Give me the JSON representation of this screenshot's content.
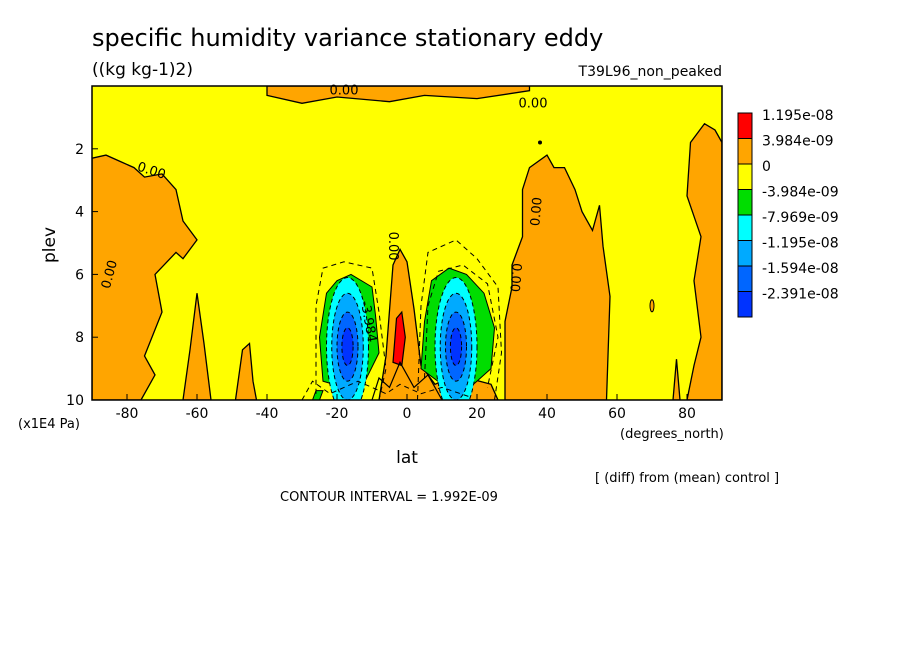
{
  "chart_data": {
    "type": "contour",
    "title": "specific humidity variance stationary eddy",
    "units": "((kg kg-1)2)",
    "run_label": "T39L96_non_peaked",
    "xlabel": "lat",
    "x_units": "(degrees_north)",
    "ylabel": "plev",
    "y_units": "(x1E4 Pa)",
    "xlim": [
      -90,
      90
    ],
    "ylim": [
      10,
      0
    ],
    "x_ticks": [
      {
        "value": -80,
        "label": "-80"
      },
      {
        "value": -60,
        "label": "-60"
      },
      {
        "value": -40,
        "label": "-40"
      },
      {
        "value": -20,
        "label": "-20"
      },
      {
        "value": 0,
        "label": "0"
      },
      {
        "value": 20,
        "label": "20"
      },
      {
        "value": 40,
        "label": "40"
      },
      {
        "value": 60,
        "label": "60"
      },
      {
        "value": 80,
        "label": "80"
      }
    ],
    "y_ticks": [
      {
        "value": 2,
        "label": "2"
      },
      {
        "value": 4,
        "label": "4"
      },
      {
        "value": 6,
        "label": "6"
      },
      {
        "value": 8,
        "label": "8"
      },
      {
        "value": 10,
        "label": "10"
      }
    ],
    "legend": [
      {
        "label": "1.195e-08",
        "color": "#ff0000"
      },
      {
        "label": "3.984e-09",
        "color": "#ffa500"
      },
      {
        "label": "0",
        "color": "#ffff00"
      },
      {
        "label": "-3.984e-09",
        "color": "#00dd00"
      },
      {
        "label": "-7.969e-09",
        "color": "#00ffff"
      },
      {
        "label": "-1.195e-08",
        "color": "#00aaff"
      },
      {
        "label": "-1.594e-08",
        "color": "#0066ff"
      },
      {
        "label": "-2.391e-08",
        "color": "#0033ff"
      }
    ],
    "contour_labels": [
      {
        "text": "0.00",
        "lat": -18,
        "plev": 0.15,
        "angle": 0
      },
      {
        "text": "0.00",
        "lat": 36,
        "plev": 0.55,
        "angle": 0
      },
      {
        "text": "0.00",
        "lat": -73,
        "plev": 2.7,
        "angle": 18
      },
      {
        "text": "0.00",
        "lat": -85,
        "plev": 6.0,
        "angle": -75
      },
      {
        "text": "0.00",
        "lat": -4,
        "plev": 5.1,
        "angle": 90
      },
      {
        "text": "0.00",
        "lat": 37,
        "plev": 4.0,
        "angle": -85
      },
      {
        "text": "0.00",
        "lat": 31,
        "plev": 6.1,
        "angle": 95
      },
      {
        "text": "-3.984",
        "lat": -11,
        "plev": 7.5,
        "angle": 80
      }
    ],
    "regions": [
      {
        "level": "positive",
        "color": "#ffa500",
        "description": "band near model top",
        "lat_range": [
          -40,
          35
        ],
        "plev_range": [
          0,
          0.6
        ]
      },
      {
        "level": "positive",
        "color": "#ffa500",
        "description": "southern polar column",
        "lat_range": [
          -90,
          -60
        ],
        "plev_range": [
          2.2,
          10
        ]
      },
      {
        "level": "positive",
        "color": "#ffa500",
        "description": "northern subtropical column",
        "lat_range": [
          27,
          58
        ],
        "plev_range": [
          2.3,
          10
        ]
      },
      {
        "level": "positive",
        "color": "#ffa500",
        "description": "northern high-latitude column",
        "lat_range": [
          80,
          90
        ],
        "plev_range": [
          1.2,
          10
        ]
      },
      {
        "level": "negative",
        "color": "#00dd00",
        "description": "southern tropical minimum",
        "lat_range": [
          -25,
          -8
        ],
        "plev_range": [
          5.8,
          9.5
        ]
      },
      {
        "level": "negative",
        "color": "#00dd00",
        "description": "northern tropical minimum",
        "lat_range": [
          6,
          25
        ],
        "plev_range": [
          5.8,
          9.5
        ]
      },
      {
        "level": "minimum",
        "color": "#0033ff",
        "description": "southern core",
        "lat": -17,
        "plev": 8.3
      },
      {
        "level": "minimum",
        "color": "#0033ff",
        "description": "northern core",
        "lat": 14,
        "plev": 8.3
      },
      {
        "level": "maximum",
        "color": "#ff0000",
        "description": "equatorial maximum",
        "lat": -2,
        "plev": 8.0
      }
    ],
    "annotations": [
      "[ (diff) from (mean) control ]",
      "CONTOUR INTERVAL = 1.992E-09"
    ],
    "grid": false,
    "legend_position": "right"
  }
}
